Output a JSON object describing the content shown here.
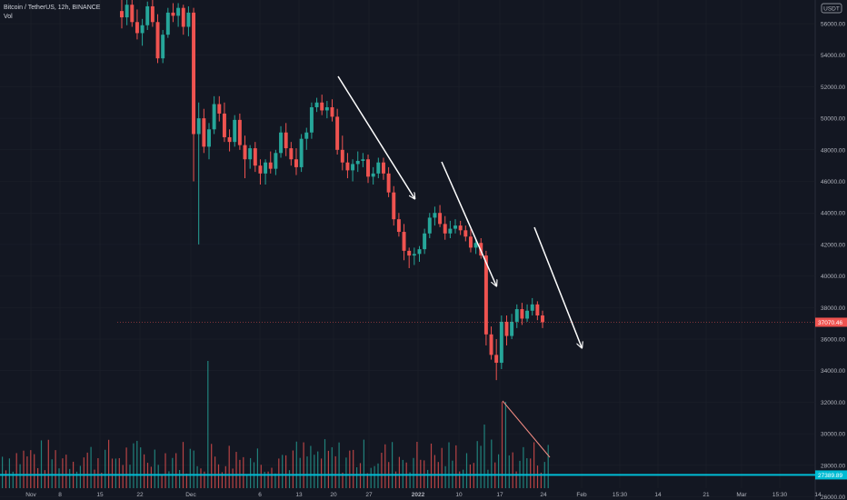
{
  "header": {
    "symbol_line": "Bitcoin / TetherUS, 12h, BINANCE",
    "indicator": "Vol"
  },
  "currency_badge": "USDT",
  "colors": {
    "background": "#131722",
    "up": "#26a69a",
    "down": "#ef5350",
    "grid": "#1e222d",
    "hline": "#00bcd4",
    "arrows": "#ffffff",
    "volume_trend": "#f28b82"
  },
  "chart_data": {
    "type": "candlestick",
    "symbol": "BTCUSDT",
    "interval": "12h",
    "exchange": "BINANCE",
    "y_range": [
      25800,
      57500
    ],
    "y_ticks": [
      "26000.00",
      "28000.00",
      "30000.00",
      "32000.00",
      "34000.00",
      "36000.00",
      "38000.00",
      "40000.00",
      "42000.00",
      "44000.00",
      "46000.00",
      "48000.00",
      "50000.00",
      "52000.00",
      "54000.00",
      "56000.00"
    ],
    "x_ticks": [
      "Nov",
      "8",
      "15",
      "22",
      "Dec",
      "6",
      "13",
      "20",
      "27",
      "2022",
      "10",
      "17",
      "24",
      "Feb",
      "15:30",
      "14",
      "21",
      "Mar",
      "15:30",
      "14"
    ],
    "last_price": "37070.46",
    "horizontal_line": {
      "price": 27389.89,
      "label": "27389.89"
    },
    "candles": [
      [
        56800,
        57800,
        55700,
        56400
      ],
      [
        56400,
        57500,
        55900,
        57200
      ],
      [
        57200,
        57600,
        55800,
        56100
      ],
      [
        56100,
        56900,
        55000,
        55400
      ],
      [
        55400,
        56300,
        54600,
        55900
      ],
      [
        55900,
        57400,
        55600,
        57100
      ],
      [
        57100,
        57600,
        55800,
        56100
      ],
      [
        56100,
        56600,
        53500,
        53800
      ],
      [
        53800,
        55600,
        53500,
        55300
      ],
      [
        55300,
        57000,
        55100,
        56700
      ],
      [
        56700,
        57300,
        56100,
        56500
      ],
      [
        56500,
        57300,
        55800,
        57000
      ],
      [
        57000,
        57200,
        55300,
        55800
      ],
      [
        55800,
        57100,
        55200,
        56700
      ],
      [
        56700,
        57000,
        46000,
        49000
      ],
      [
        49000,
        51000,
        42000,
        50000
      ],
      [
        50000,
        50600,
        47800,
        48200
      ],
      [
        48200,
        49700,
        47400,
        49300
      ],
      [
        49300,
        51400,
        49000,
        50900
      ],
      [
        50900,
        51400,
        49800,
        50300
      ],
      [
        50300,
        51000,
        48500,
        48800
      ],
      [
        48800,
        49300,
        47900,
        48500
      ],
      [
        48500,
        50200,
        48200,
        49900
      ],
      [
        49900,
        50300,
        48000,
        48300
      ],
      [
        48300,
        48900,
        46200,
        47400
      ],
      [
        47400,
        48300,
        46800,
        48100
      ],
      [
        48100,
        48500,
        46600,
        47000
      ],
      [
        47000,
        47400,
        45800,
        46500
      ],
      [
        46500,
        47400,
        45800,
        47200
      ],
      [
        47200,
        47900,
        46500,
        46800
      ],
      [
        46800,
        48000,
        46400,
        47800
      ],
      [
        47800,
        49500,
        47500,
        49100
      ],
      [
        49100,
        49700,
        47600,
        48100
      ],
      [
        48100,
        48500,
        47000,
        47400
      ],
      [
        47400,
        48100,
        46400,
        46900
      ],
      [
        46900,
        49000,
        46600,
        48700
      ],
      [
        48700,
        49400,
        48000,
        49100
      ],
      [
        49100,
        51000,
        48700,
        50700
      ],
      [
        50700,
        51300,
        50400,
        51000
      ],
      [
        51000,
        51500,
        50200,
        50500
      ],
      [
        50500,
        51100,
        50000,
        50700
      ],
      [
        50700,
        51200,
        49800,
        50100
      ],
      [
        50100,
        50600,
        47700,
        48000
      ],
      [
        48000,
        48900,
        46700,
        47200
      ],
      [
        47200,
        47800,
        46200,
        46700
      ],
      [
        46700,
        47400,
        46000,
        47100
      ],
      [
        47100,
        47900,
        46600,
        47300
      ],
      [
        47300,
        47800,
        46900,
        47400
      ],
      [
        47400,
        47700,
        45900,
        46300
      ],
      [
        46300,
        46900,
        45800,
        46500
      ],
      [
        46500,
        47500,
        46200,
        47200
      ],
      [
        47200,
        47500,
        46100,
        46500
      ],
      [
        46500,
        46900,
        45000,
        45300
      ],
      [
        45300,
        45700,
        43200,
        43600
      ],
      [
        43600,
        44000,
        42500,
        42800
      ],
      [
        42800,
        43300,
        41000,
        41600
      ],
      [
        41600,
        41800,
        40500,
        41300
      ],
      [
        41300,
        41800,
        40700,
        41400
      ],
      [
        41400,
        41900,
        40900,
        41700
      ],
      [
        41700,
        43000,
        41400,
        42700
      ],
      [
        42700,
        44000,
        42400,
        43700
      ],
      [
        43700,
        44400,
        43200,
        44000
      ],
      [
        44000,
        44500,
        43100,
        43300
      ],
      [
        43300,
        43800,
        42300,
        42700
      ],
      [
        42700,
        43500,
        42400,
        43000
      ],
      [
        43000,
        43600,
        42700,
        43200
      ],
      [
        43200,
        43500,
        42600,
        42900
      ],
      [
        42900,
        43200,
        42200,
        42500
      ],
      [
        42500,
        43000,
        41500,
        41800
      ],
      [
        41800,
        42300,
        41400,
        42100
      ],
      [
        42100,
        42400,
        41100,
        41300
      ],
      [
        41300,
        41600,
        35600,
        36300
      ],
      [
        36300,
        36800,
        34700,
        35000
      ],
      [
        35000,
        36000,
        33400,
        34500
      ],
      [
        34500,
        37500,
        34100,
        37100
      ],
      [
        37100,
        37500,
        35600,
        36200
      ],
      [
        36200,
        37600,
        36000,
        37100
      ],
      [
        37100,
        38200,
        36700,
        37900
      ],
      [
        37900,
        38300,
        36900,
        37300
      ],
      [
        37300,
        38200,
        37100,
        37800
      ],
      [
        37800,
        38600,
        37500,
        38200
      ],
      [
        38200,
        38400,
        37200,
        37500
      ],
      [
        37500,
        37800,
        36700,
        37070
      ]
    ],
    "volume_ticks_note": "volume pane shares price-style scale labels on right axis"
  }
}
